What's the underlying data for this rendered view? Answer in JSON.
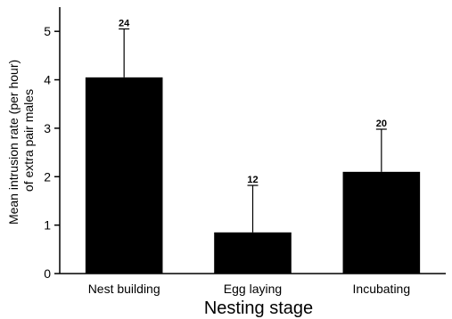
{
  "chart_data": {
    "type": "bar",
    "categories": [
      "Nest building",
      "Egg laying",
      "Incubating"
    ],
    "values": [
      4.05,
      0.85,
      2.1
    ],
    "error_upper": [
      5.05,
      1.82,
      2.98
    ],
    "sample_sizes": [
      "24",
      "12",
      "20"
    ],
    "title": "",
    "xlabel": "Nesting stage",
    "ylabel_lines": [
      "Mean intrusion rate (per hour)",
      "of extra pair males"
    ],
    "ylim": [
      0,
      5.5
    ],
    "yticks": [
      0,
      1,
      2,
      3,
      4,
      5
    ],
    "ytick_labels": [
      "0",
      "1",
      "2",
      "3",
      "4",
      "5"
    ],
    "grid": false,
    "legend": "none",
    "bar_color": "#000000"
  }
}
